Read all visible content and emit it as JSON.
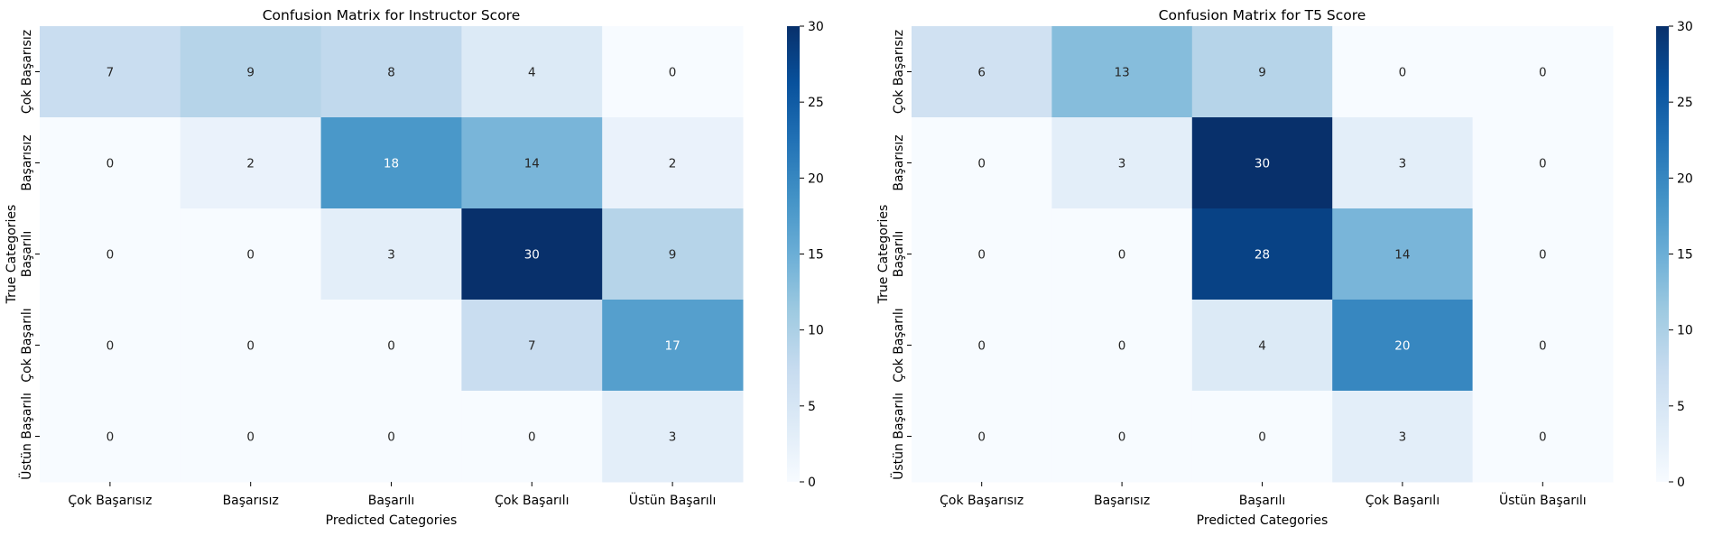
{
  "chart_data": [
    {
      "type": "heatmap",
      "title": "Confusion Matrix for Instructor Score",
      "xlabel": "Predicted Categories",
      "ylabel": "True Categories",
      "x_categories": [
        "Çok Başarısız",
        "Başarısız",
        "Başarılı",
        "Çok Başarılı",
        "Üstün Başarılı"
      ],
      "y_categories": [
        "Çok Başarısız",
        "Başarısız",
        "Başarılı",
        "Çok Başarılı",
        "Üstün Başarılı"
      ],
      "values": [
        [
          7,
          9,
          8,
          4,
          0
        ],
        [
          0,
          2,
          18,
          14,
          2
        ],
        [
          0,
          0,
          3,
          30,
          9
        ],
        [
          0,
          0,
          0,
          7,
          17
        ],
        [
          0,
          0,
          0,
          0,
          3
        ]
      ],
      "colorbar": {
        "min": 0,
        "max": 30,
        "ticks": [
          0,
          5,
          10,
          15,
          20,
          25,
          30
        ]
      },
      "colormap": "Blues"
    },
    {
      "type": "heatmap",
      "title": "Confusion Matrix for T5 Score",
      "xlabel": "Predicted Categories",
      "ylabel": "True Categories",
      "x_categories": [
        "Çok Başarısız",
        "Başarısız",
        "Başarılı",
        "Çok Başarılı",
        "Üstün Başarılı"
      ],
      "y_categories": [
        "Çok Başarısız",
        "Başarısız",
        "Başarılı",
        "Çok Başarılı",
        "Üstün Başarılı"
      ],
      "values": [
        [
          6,
          13,
          9,
          0,
          0
        ],
        [
          0,
          3,
          30,
          3,
          0
        ],
        [
          0,
          0,
          28,
          14,
          0
        ],
        [
          0,
          0,
          4,
          20,
          0
        ],
        [
          0,
          0,
          0,
          3,
          0
        ]
      ],
      "colorbar": {
        "min": 0,
        "max": 30,
        "ticks": [
          0,
          5,
          10,
          15,
          20,
          25,
          30
        ]
      },
      "colormap": "Blues"
    }
  ]
}
